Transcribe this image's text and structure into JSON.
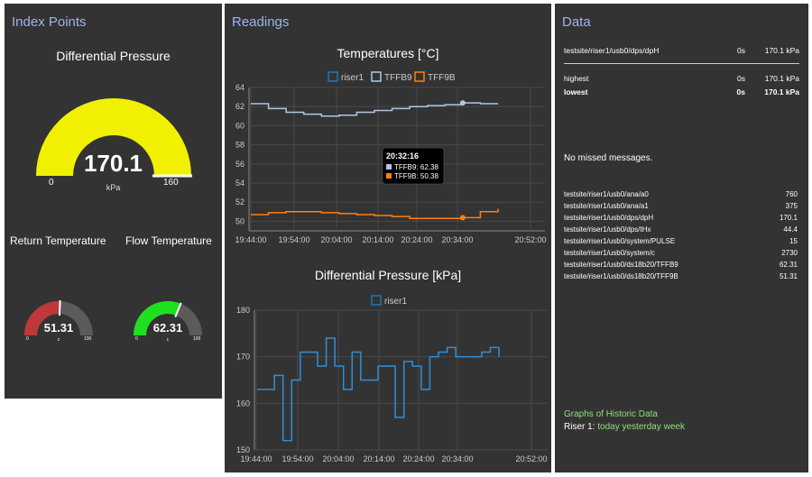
{
  "index_points": {
    "title": "Index Points",
    "dp_gauge": {
      "title": "Differential Pressure",
      "value": 170.1,
      "value_text": "170.1",
      "unit": "kPa",
      "min": 0,
      "max": 160,
      "min_text": "0",
      "max_text": "160",
      "color": "#f0f000"
    },
    "return_gauge": {
      "title": "Return Temperature",
      "value": 51.31,
      "value_text": "51.31",
      "unit": "c",
      "min": 0,
      "max": 100,
      "min_text": "0",
      "max_text": "100",
      "color": "#c0383a"
    },
    "flow_gauge": {
      "title": "Flow Temperature",
      "value": 62.31,
      "value_text": "62.31",
      "unit": "c",
      "min": 0,
      "max": 100,
      "min_text": "0",
      "max_text": "100",
      "color": "#1ee01e"
    }
  },
  "readings": {
    "title": "Readings",
    "temp_chart": {
      "title": "Temperatures [°C]",
      "legend": [
        "riser1",
        "TFFB9",
        "TFF9B"
      ],
      "legend_colors": [
        "#1f77b4",
        "#aec7e8",
        "#ff7f0e"
      ],
      "y_ticks": [
        "64",
        "62",
        "60",
        "58",
        "56",
        "54",
        "52",
        "50"
      ],
      "x_ticks": [
        "19:44:00",
        "19:54:00",
        "20:04:00",
        "20:14:00",
        "20:24:00",
        "20:34:00",
        "20:52:00"
      ],
      "tooltip": {
        "time": "20:32:16",
        "line1": "TFFB9: 62.38",
        "line2": "TFF9B: 50.38"
      }
    },
    "dp_chart": {
      "title": "Differential Pressure [kPa]",
      "legend": [
        "riser1"
      ],
      "legend_colors": [
        "#1f77b4"
      ],
      "y_ticks": [
        "180",
        "170",
        "160",
        "150"
      ],
      "x_ticks": [
        "19:44:00",
        "19:54:00",
        "20:04:00",
        "20:14:00",
        "20:24:00",
        "20:34:00",
        "20:52:00"
      ]
    }
  },
  "data_panel": {
    "title": "Data",
    "header_row": {
      "key": "testsite/riser1/usb0/dps/dpH",
      "time": "0s",
      "value": "170.1 kPa"
    },
    "highest": {
      "key": "highest",
      "time": "0s",
      "value": "170.1 kPa"
    },
    "lowest": {
      "key": "lowest",
      "time": "0s",
      "value": "170.1 kPa"
    },
    "missed": "No missed messages.",
    "list": [
      {
        "key": "testsite/riser1/usb0/ana/a0",
        "value": "760"
      },
      {
        "key": "testsite/riser1/usb0/ana/a1",
        "value": "375"
      },
      {
        "key": "testsite/riser1/usb0/dps/dpH",
        "value": "170.1"
      },
      {
        "key": "testsite/riser1/usb0/dps/tHx",
        "value": "44.4"
      },
      {
        "key": "testsite/riser1/usb0/system/PULSE",
        "value": "15"
      },
      {
        "key": "testsite/riser1/usb0/system/c",
        "value": "2730"
      },
      {
        "key": "testsite/riser1/usb0/ds18b20/TFFB9",
        "value": "62.31"
      },
      {
        "key": "testsite/riser1/usb0/ds18b20/TFF9B",
        "value": "51.31"
      }
    ],
    "graphs_link": "Graphs of Historic Data",
    "riser_label": "Riser 1:",
    "today": "today",
    "yesterday": "yesterday",
    "week": "week"
  },
  "chart_data": [
    {
      "type": "line",
      "title": "Temperatures [°C]",
      "xlabel": "",
      "ylabel": "",
      "ylim": [
        49,
        64
      ],
      "x": [
        "19:44",
        "19:48",
        "19:52",
        "19:56",
        "20:00",
        "20:04",
        "20:08",
        "20:12",
        "20:16",
        "20:20",
        "20:24",
        "20:28",
        "20:32",
        "20:36",
        "20:40"
      ],
      "series": [
        {
          "name": "TFFB9",
          "values": [
            62.3,
            61.8,
            61.4,
            61.2,
            61.0,
            61.1,
            61.4,
            61.6,
            61.8,
            62.0,
            62.1,
            62.2,
            62.38,
            62.3,
            62.3
          ]
        },
        {
          "name": "TFF9B",
          "values": [
            50.7,
            50.9,
            51.0,
            51.0,
            50.9,
            50.8,
            50.7,
            50.6,
            50.5,
            50.3,
            50.3,
            50.3,
            50.38,
            51.0,
            51.3
          ]
        }
      ],
      "legend": "top",
      "grid": true
    },
    {
      "type": "line",
      "title": "Differential Pressure [kPa]",
      "xlabel": "",
      "ylabel": "",
      "ylim": [
        150,
        180
      ],
      "x": [
        "19:44",
        "19:46",
        "19:48",
        "19:50",
        "19:52",
        "19:54",
        "19:56",
        "19:58",
        "20:00",
        "20:02",
        "20:04",
        "20:06",
        "20:08",
        "20:10",
        "20:12",
        "20:14",
        "20:16",
        "20:18",
        "20:20",
        "20:22",
        "20:24",
        "20:26",
        "20:28",
        "20:30",
        "20:32",
        "20:34",
        "20:36",
        "20:38",
        "20:40"
      ],
      "series": [
        {
          "name": "riser1",
          "values": [
            163,
            163,
            166,
            152,
            165,
            171,
            171,
            168,
            174,
            168,
            163,
            171,
            165,
            165,
            168,
            168,
            157,
            169,
            168,
            163,
            170,
            171,
            172,
            170,
            170,
            170,
            171,
            172,
            170
          ]
        }
      ],
      "legend": "top",
      "grid": true
    }
  ]
}
